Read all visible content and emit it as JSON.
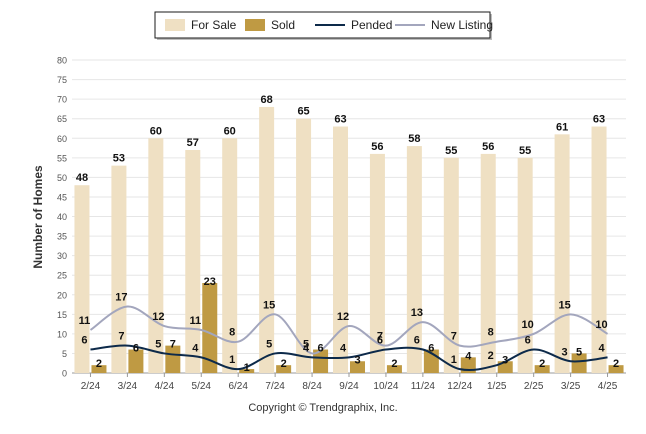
{
  "chart_data": {
    "type": "bar",
    "ylabel": "Number of Homes",
    "xlabel": "",
    "ylim": [
      0,
      80
    ],
    "yticks": [
      0,
      5,
      10,
      15,
      20,
      25,
      30,
      35,
      40,
      45,
      50,
      55,
      60,
      65,
      70,
      75,
      80
    ],
    "grid": true,
    "legend_placement": "top-center",
    "categories": [
      "2/24",
      "3/24",
      "4/24",
      "5/24",
      "6/24",
      "7/24",
      "8/24",
      "9/24",
      "10/24",
      "11/24",
      "12/24",
      "1/25",
      "2/25",
      "3/25",
      "4/25"
    ],
    "series": [
      {
        "name": "For Sale",
        "kind": "bar",
        "color": "#efe0c3",
        "values": [
          48,
          53,
          60,
          57,
          60,
          68,
          65,
          63,
          56,
          58,
          55,
          56,
          55,
          61,
          63
        ]
      },
      {
        "name": "Sold",
        "kind": "bar",
        "color": "#bf9a43",
        "values": [
          2,
          6,
          7,
          23,
          1,
          2,
          6,
          3,
          2,
          6,
          4,
          3,
          2,
          5,
          2
        ]
      },
      {
        "name": "Pended",
        "kind": "line",
        "color": "#0d2a4a",
        "values": [
          6,
          7,
          5,
          4,
          1,
          5,
          4,
          4,
          6,
          6,
          1,
          2,
          6,
          3,
          4
        ]
      },
      {
        "name": "New Listing",
        "kind": "line",
        "color": "#a3a6bd",
        "values": [
          11,
          17,
          12,
          11,
          8,
          15,
          5,
          12,
          7,
          13,
          7,
          8,
          10,
          15,
          10
        ]
      }
    ]
  },
  "copyright": "Copyright © Trendgraphix, Inc."
}
